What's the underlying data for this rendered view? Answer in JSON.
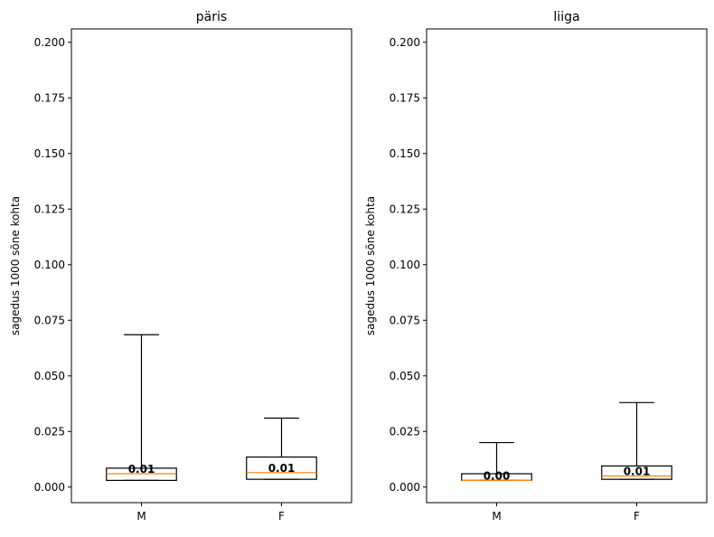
{
  "chart_data": [
    {
      "type": "box",
      "title": "päris",
      "xlabel": "",
      "ylabel": "sagedus 1000 sõne kohta",
      "ylim": [
        -0.007,
        0.206
      ],
      "yticks": [
        "0.000",
        "0.025",
        "0.050",
        "0.075",
        "0.100",
        "0.125",
        "0.150",
        "0.175",
        "0.200"
      ],
      "categories": [
        "M",
        "F"
      ],
      "boxes": [
        {
          "category": "M",
          "whislo": 0.003,
          "q1": 0.003,
          "med": 0.006,
          "q3": 0.0085,
          "whishi": 0.0685,
          "label": "0.01"
        },
        {
          "category": "F",
          "whislo": 0.0035,
          "q1": 0.0035,
          "med": 0.0065,
          "q3": 0.0135,
          "whishi": 0.031,
          "label": "0.01"
        }
      ]
    },
    {
      "type": "box",
      "title": "liiga",
      "xlabel": "",
      "ylabel": "sagedus 1000 sõne kohta",
      "ylim": [
        -0.007,
        0.206
      ],
      "yticks": [
        "0.000",
        "0.025",
        "0.050",
        "0.075",
        "0.100",
        "0.125",
        "0.150",
        "0.175",
        "0.200"
      ],
      "categories": [
        "M",
        "F"
      ],
      "boxes": [
        {
          "category": "M",
          "whislo": 0.003,
          "q1": 0.003,
          "med": 0.003,
          "q3": 0.006,
          "whishi": 0.02,
          "label": "0.00"
        },
        {
          "category": "F",
          "whislo": 0.0035,
          "q1": 0.0035,
          "med": 0.005,
          "q3": 0.0095,
          "whishi": 0.038,
          "label": "0.01"
        }
      ]
    }
  ],
  "colors": {
    "box": "#000000",
    "median": "#ff7f0e",
    "axes": "#000000",
    "background": "#ffffff"
  }
}
